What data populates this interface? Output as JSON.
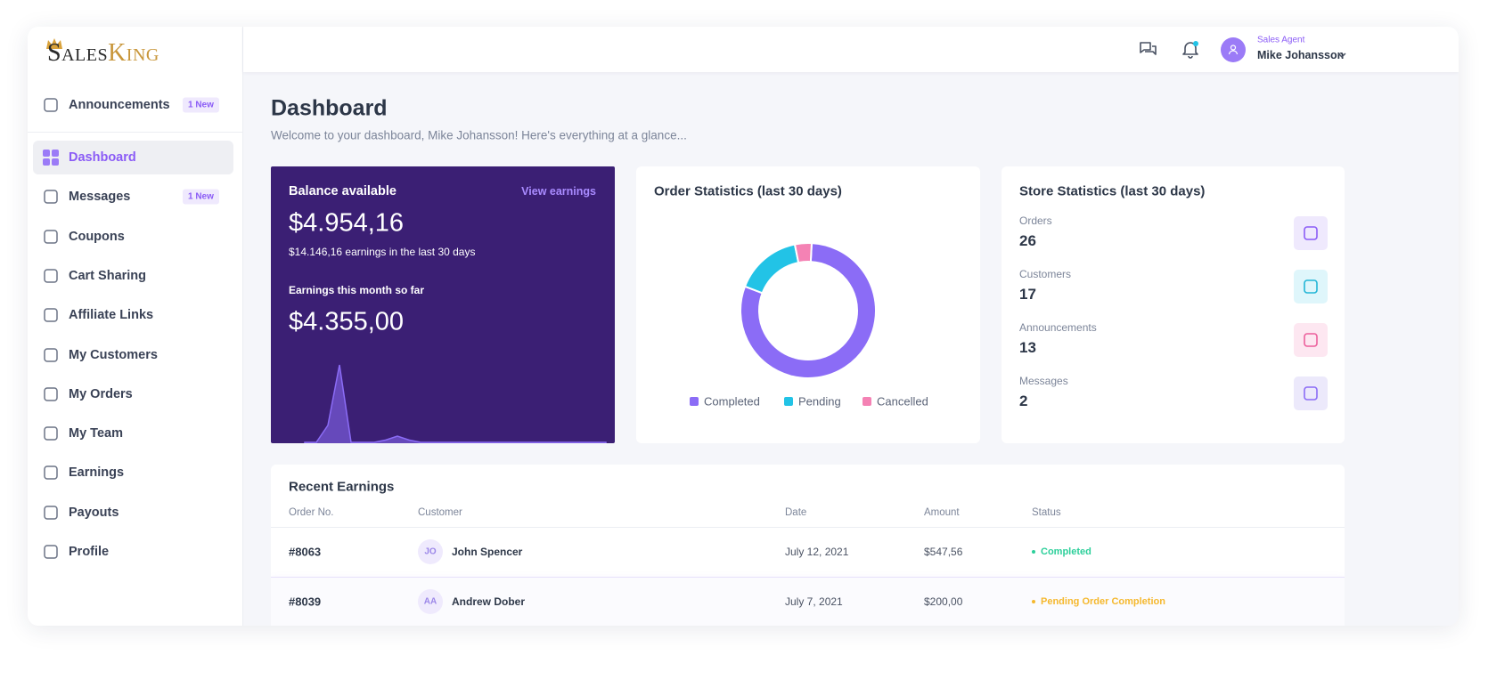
{
  "brand": [
    "Sales",
    "King"
  ],
  "sidebar": {
    "pinned": {
      "label": "Announcements",
      "badge": "1 New"
    },
    "items": [
      {
        "label": "Dashboard",
        "active": true
      },
      {
        "label": "Messages",
        "badge": "1 New"
      },
      {
        "label": "Coupons"
      },
      {
        "label": "Cart Sharing"
      },
      {
        "label": "Affiliate Links"
      },
      {
        "label": "My Customers"
      },
      {
        "label": "My Orders"
      },
      {
        "label": "My Team"
      },
      {
        "label": "Earnings"
      },
      {
        "label": "Payouts"
      },
      {
        "label": "Profile"
      }
    ]
  },
  "topbar": {
    "role": "Sales Agent",
    "name": "Mike Johansson"
  },
  "header": {
    "title": "Dashboard",
    "subtitle": "Welcome to your dashboard, Mike Johansson! Here's everything at a glance..."
  },
  "balance": {
    "title": "Balance available",
    "link": "View earnings",
    "amount": "$4.954,16",
    "note": "$14.146,16 earnings in the last 30 days",
    "month_label": "Earnings this month so far",
    "month_amount": "$4.355,00"
  },
  "chart_data": [
    {
      "type": "area",
      "values": [
        0,
        0,
        22,
        100,
        0,
        0,
        0,
        3,
        8,
        3,
        0,
        0,
        0,
        0,
        0,
        0,
        0,
        0,
        0,
        0,
        0,
        0,
        0,
        0,
        0,
        0,
        0
      ],
      "ylim": [
        0,
        100
      ],
      "color": "#8b6cf6"
    },
    {
      "type": "pie",
      "title": "Order Statistics (last 30 days)",
      "categories": [
        "Completed",
        "Pending",
        "Cancelled"
      ],
      "values": [
        80,
        16,
        4
      ],
      "colors": [
        "#8b6cf6",
        "#22c3e6",
        "#f482b4"
      ],
      "donut": true
    }
  ],
  "store": {
    "title": "Store Statistics (last 30 days)",
    "items": [
      {
        "label": "Orders",
        "value": 26
      },
      {
        "label": "Customers",
        "value": 17
      },
      {
        "label": "Announcements",
        "value": 13
      },
      {
        "label": "Messages",
        "value": 2
      }
    ]
  },
  "earnings": {
    "title": "Recent Earnings",
    "columns": [
      "Order No.",
      "Customer",
      "Date",
      "Amount",
      "Status"
    ],
    "rows": [
      {
        "order": "#8063",
        "initials": "JO",
        "customer": "John Spencer",
        "date": "July 12, 2021",
        "amount": "$547,56",
        "status": "Completed",
        "status_color": "#2ccf9a"
      },
      {
        "order": "#8039",
        "initials": "AA",
        "customer": "Andrew Dober",
        "date": "July 7, 2021",
        "amount": "$200,00",
        "status": "Pending Order Completion",
        "status_color": "#f5b82e"
      }
    ]
  }
}
